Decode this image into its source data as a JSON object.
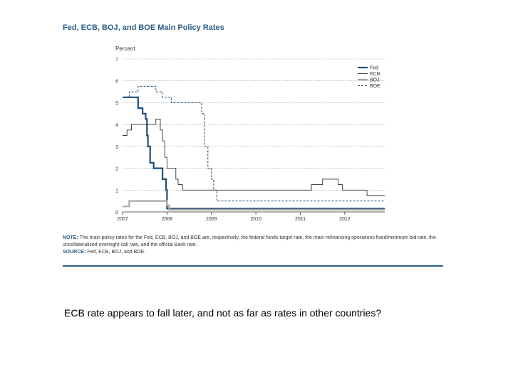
{
  "chart_data": {
    "type": "line",
    "title": "Fed, ECB, BOJ, and BOE Main Policy Rates",
    "ylabel": "Percent",
    "xlabel": "",
    "ylim": [
      0,
      7
    ],
    "xlim": [
      2007,
      2012.9
    ],
    "yticks": [
      0,
      1,
      2,
      3,
      4,
      5,
      6,
      7
    ],
    "xticks": [
      2007,
      2008,
      2009,
      2010,
      2011,
      2012
    ],
    "grid": true,
    "legend_position": "top-right",
    "series": [
      {
        "name": "Fed",
        "color": "#1f4e79",
        "style": "solid-thick",
        "points": [
          [
            2007,
            5.25
          ],
          [
            2007.35,
            5.25
          ],
          [
            2007.35,
            4.75
          ],
          [
            2007.45,
            4.75
          ],
          [
            2007.45,
            4.5
          ],
          [
            2007.52,
            4.5
          ],
          [
            2007.52,
            4.25
          ],
          [
            2007.52,
            4.25
          ],
          [
            2007.55,
            4.25
          ],
          [
            2007.55,
            3.5
          ],
          [
            2007.57,
            3.5
          ],
          [
            2007.57,
            3.0
          ],
          [
            2007.62,
            3.0
          ],
          [
            2007.62,
            2.25
          ],
          [
            2007.7,
            2.25
          ],
          [
            2007.7,
            2.0
          ],
          [
            2007.9,
            2.0
          ],
          [
            2007.9,
            1.5
          ],
          [
            2007.98,
            1.5
          ],
          [
            2007.98,
            1.0
          ],
          [
            2008.0,
            1.0
          ],
          [
            2008.0,
            0.15
          ],
          [
            2012.9,
            0.15
          ]
        ]
      },
      {
        "name": "ECB",
        "color": "#333333",
        "style": "solid-thin",
        "points": [
          [
            2007,
            3.5
          ],
          [
            2007.1,
            3.5
          ],
          [
            2007.1,
            3.75
          ],
          [
            2007.2,
            3.75
          ],
          [
            2007.2,
            4.0
          ],
          [
            2007.75,
            4.0
          ],
          [
            2007.75,
            4.25
          ],
          [
            2007.85,
            4.25
          ],
          [
            2007.85,
            3.75
          ],
          [
            2007.9,
            3.75
          ],
          [
            2007.9,
            3.25
          ],
          [
            2007.95,
            3.25
          ],
          [
            2007.95,
            2.5
          ],
          [
            2008.0,
            2.5
          ],
          [
            2008.0,
            2.0
          ],
          [
            2008.2,
            2.0
          ],
          [
            2008.2,
            1.5
          ],
          [
            2008.25,
            1.5
          ],
          [
            2008.25,
            1.25
          ],
          [
            2008.35,
            1.25
          ],
          [
            2008.35,
            1.0
          ],
          [
            2011.25,
            1.0
          ],
          [
            2011.25,
            1.25
          ],
          [
            2011.5,
            1.25
          ],
          [
            2011.5,
            1.5
          ],
          [
            2011.85,
            1.5
          ],
          [
            2011.85,
            1.25
          ],
          [
            2011.95,
            1.25
          ],
          [
            2011.95,
            1.0
          ],
          [
            2012.5,
            1.0
          ],
          [
            2012.5,
            0.75
          ],
          [
            2012.9,
            0.75
          ]
        ]
      },
      {
        "name": "BOJ",
        "color": "#a6a6a6",
        "style": "solid-thick",
        "points": [
          [
            2007,
            0.25
          ],
          [
            2007.15,
            0.25
          ],
          [
            2007.15,
            0.5
          ],
          [
            2008.0,
            0.5
          ],
          [
            2008.0,
            0.3
          ],
          [
            2008.05,
            0.3
          ],
          [
            2008.05,
            0.1
          ],
          [
            2012.9,
            0.1
          ]
        ]
      },
      {
        "name": "BOE",
        "color": "#1f4e79",
        "style": "dashed",
        "points": [
          [
            2007,
            5.25
          ],
          [
            2007.15,
            5.25
          ],
          [
            2007.15,
            5.5
          ],
          [
            2007.35,
            5.5
          ],
          [
            2007.35,
            5.75
          ],
          [
            2007.75,
            5.75
          ],
          [
            2007.75,
            5.5
          ],
          [
            2007.9,
            5.5
          ],
          [
            2007.9,
            5.25
          ],
          [
            2008.1,
            5.25
          ],
          [
            2008.1,
            5.0
          ],
          [
            2008.78,
            5.0
          ],
          [
            2008.78,
            4.5
          ],
          [
            2008.85,
            4.5
          ],
          [
            2008.85,
            3.0
          ],
          [
            2008.92,
            3.0
          ],
          [
            2008.92,
            2.0
          ],
          [
            2009.0,
            2.0
          ],
          [
            2009.0,
            1.5
          ],
          [
            2009.05,
            1.5
          ],
          [
            2009.05,
            1.0
          ],
          [
            2009.12,
            1.0
          ],
          [
            2009.12,
            0.5
          ],
          [
            2012.9,
            0.5
          ]
        ]
      }
    ]
  },
  "note": {
    "label": "NOTE:",
    "text": "The main policy rates for the Fed, ECB, BOJ, and BOE are, respectively, the federal funds target rate, the main refinancing operations fixed/minimum bid rate, the uncollateralized overnight call rate, and the official Bank rate.",
    "source_label": "SOURCE:",
    "source_text": "Fed, ECB, BOJ, and BOE."
  },
  "caption": "ECB rate appears to fall later, and not as far as rates in other countries?"
}
